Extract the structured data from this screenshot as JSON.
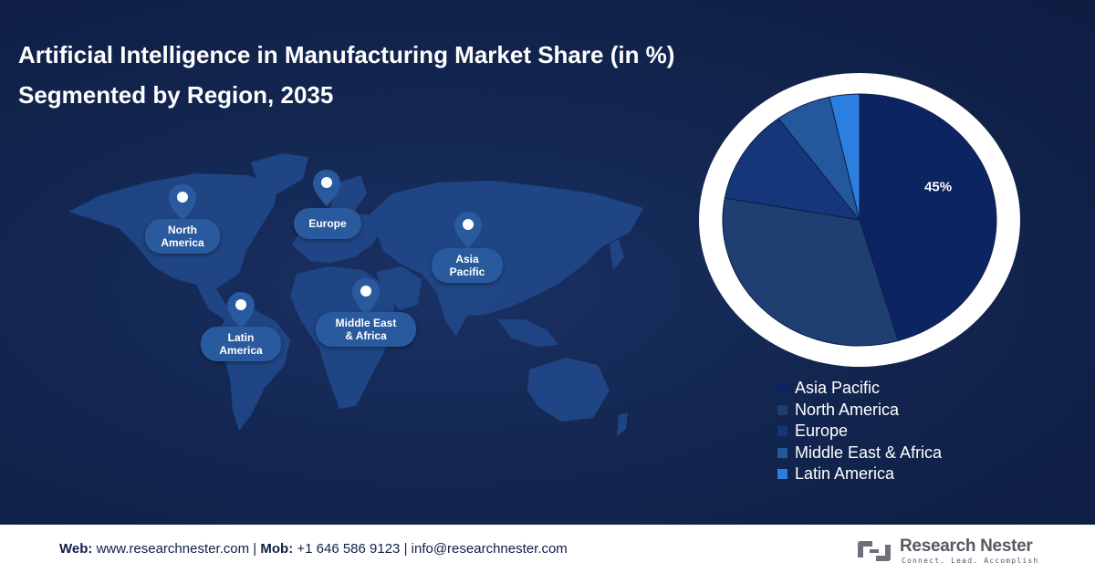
{
  "title": {
    "line1": "Artificial Intelligence in Manufacturing Market Share (in %)",
    "line2": "Segmented by Region, 2035"
  },
  "map_labels": {
    "north_america": "North\nAmerica",
    "europe": "Europe",
    "asia_pacific": "Asia\nPacific",
    "latin_america": "Latin\nAmerica",
    "middle_east_africa": "Middle East\n& Africa"
  },
  "chart_data": {
    "type": "pie",
    "title": "Artificial Intelligence in Manufacturing Market Share (in %) Segmented by Region, 2035",
    "slices": [
      {
        "label": "Asia Pacific",
        "value": 45,
        "color": "#0c2462",
        "data_label": "45%"
      },
      {
        "label": "North America",
        "value": 32,
        "color": "#1f3f72"
      },
      {
        "label": "Europe",
        "value": 12,
        "color": "#15367a"
      },
      {
        "label": "Middle East & Africa",
        "value": 6.5,
        "color": "#24589c"
      },
      {
        "label": "Latin America",
        "value": 3.5,
        "color": "#2b80df"
      }
    ],
    "legend_placement": "bottom-right"
  },
  "footer": {
    "web_label": "Web:",
    "web": "www.researchnester.com",
    "mob_label": "Mob:",
    "mob": "+1 646 586 9123",
    "email": "info@researchnester.com",
    "separator": " | "
  },
  "logo": {
    "name": "Research Nester",
    "tagline": "Connect. Lead. Accomplish"
  }
}
